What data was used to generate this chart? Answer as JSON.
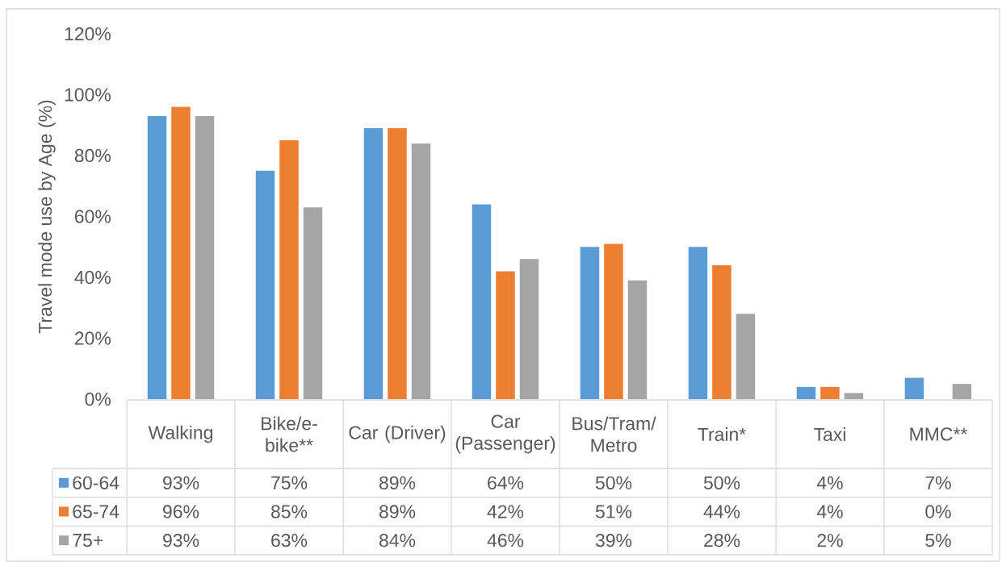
{
  "chart_data": {
    "type": "bar",
    "ylabel": "Travel mode use by Age (%)",
    "categories": [
      "Walking",
      "Bike/e-bike**",
      "Car (Driver)",
      "Car (Passenger)",
      "Bus/Tram/Metro",
      "Train*",
      "Taxi",
      "MMC**"
    ],
    "series": [
      {
        "name": "60-64",
        "color": "#5b9bd5",
        "values": [
          93,
          75,
          89,
          64,
          50,
          50,
          4,
          7
        ],
        "value_labels": [
          "93%",
          "75%",
          "89%",
          "64%",
          "50%",
          "50%",
          "4%",
          "7%"
        ]
      },
      {
        "name": "65-74",
        "color": "#ed7d31",
        "values": [
          96,
          85,
          89,
          42,
          51,
          44,
          4,
          0
        ],
        "value_labels": [
          "96%",
          "85%",
          "89%",
          "42%",
          "51%",
          "44%",
          "4%",
          "0%"
        ]
      },
      {
        "name": "75+",
        "color": "#a5a5a5",
        "values": [
          93,
          63,
          84,
          46,
          39,
          28,
          2,
          5
        ],
        "value_labels": [
          "93%",
          "63%",
          "84%",
          "46%",
          "39%",
          "28%",
          "2%",
          "5%"
        ]
      }
    ],
    "ylim": [
      0,
      120
    ],
    "yticks": [
      {
        "value": 0,
        "label": "0%"
      },
      {
        "value": 20,
        "label": "20%"
      },
      {
        "value": 40,
        "label": "40%"
      },
      {
        "value": 60,
        "label": "60%"
      },
      {
        "value": 80,
        "label": "80%"
      },
      {
        "value": 100,
        "label": "100%"
      },
      {
        "value": 120,
        "label": "120%"
      }
    ],
    "legend": "bottom"
  }
}
